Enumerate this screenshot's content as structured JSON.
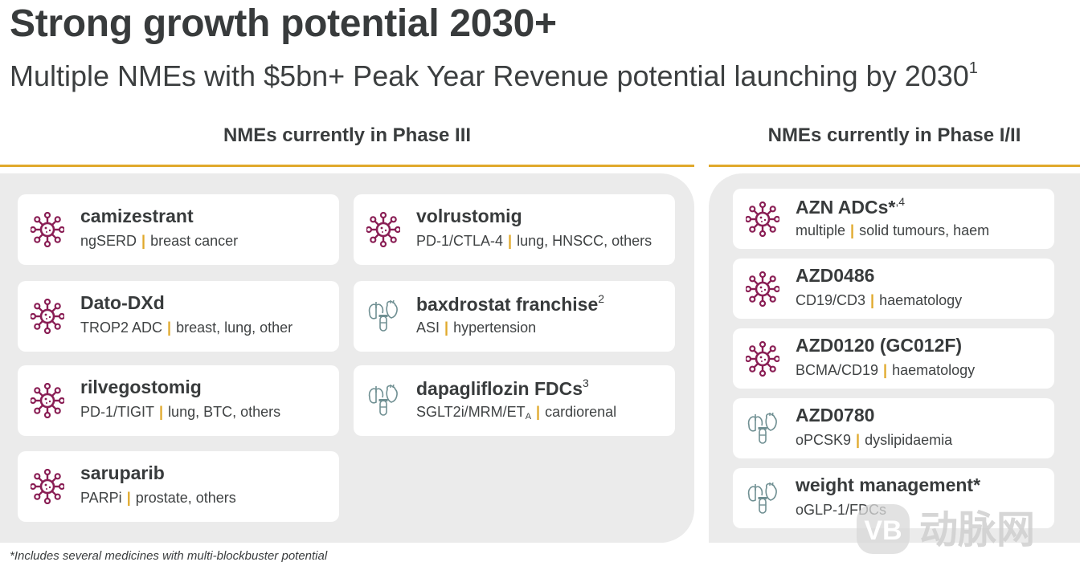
{
  "title": "Strong growth potential 2030+",
  "subtitle": {
    "text": "Multiple NMEs with $5bn+ Peak Year Revenue potential launching by 2030",
    "sup": "1"
  },
  "colors": {
    "accent": "#e0a92b",
    "oncology_icon": "#8a1f55",
    "cvrm_icon": "#6f8f92",
    "panel": "#ebebeb"
  },
  "phase3": {
    "heading": "NMEs currently in Phase III",
    "cards": [
      {
        "icon": "virus-icon",
        "name": "camizestrant",
        "sup": "",
        "desc_a": "ngSERD",
        "desc_sub": "",
        "desc_b": "breast cancer"
      },
      {
        "icon": "virus-icon",
        "name": "volrustomig",
        "sup": "",
        "desc_a": "PD-1/CTLA-4",
        "desc_sub": "",
        "desc_b": "lung, HNSCC, others"
      },
      {
        "icon": "virus-icon",
        "name": "Dato-DXd",
        "sup": "",
        "desc_a": "TROP2 ADC",
        "desc_sub": "",
        "desc_b": "breast, lung, other"
      },
      {
        "icon": "organs-icon",
        "name": "baxdrostat franchise",
        "sup": "2",
        "desc_a": "ASI",
        "desc_sub": "",
        "desc_b": "hypertension"
      },
      {
        "icon": "virus-icon",
        "name": "rilvegostomig",
        "sup": "",
        "desc_a": "PD-1/TIGIT",
        "desc_sub": "",
        "desc_b": "lung, BTC, others"
      },
      {
        "icon": "organs-icon",
        "name": "dapagliflozin FDCs",
        "sup": "3",
        "desc_a": "SGLT2i/MRM/ET",
        "desc_sub": "A",
        "desc_b": "cardiorenal"
      },
      {
        "icon": "virus-icon",
        "name": "saruparib",
        "sup": "",
        "desc_a": "PARPi",
        "desc_sub": "",
        "desc_b": "prostate, others"
      }
    ]
  },
  "phase12": {
    "heading": "NMEs currently in Phase I/II",
    "cards": [
      {
        "icon": "virus-icon",
        "name": "AZN ADCs*",
        "sup": ",4",
        "desc_a": "multiple",
        "desc_sub": "",
        "desc_b": "solid tumours, haem"
      },
      {
        "icon": "virus-icon",
        "name": "AZD0486",
        "sup": "",
        "desc_a": "CD19/CD3",
        "desc_sub": "",
        "desc_b": "haematology"
      },
      {
        "icon": "virus-icon",
        "name": "AZD0120 (GC012F)",
        "sup": "",
        "desc_a": "BCMA/CD19",
        "desc_sub": "",
        "desc_b": "haematology"
      },
      {
        "icon": "organs-icon",
        "name": "AZD0780",
        "sup": "",
        "desc_a": "oPCSK9",
        "desc_sub": "",
        "desc_b": "dyslipidaemia"
      },
      {
        "icon": "organs-icon",
        "name": "weight management*",
        "sup": "",
        "desc_a": "oGLP-1/FDCs",
        "desc_sub": "",
        "desc_b": ""
      }
    ]
  },
  "footnote": "*Includes several medicines with multi-blockbuster potential",
  "watermark": {
    "logo": "VB",
    "text": "动脉网"
  }
}
